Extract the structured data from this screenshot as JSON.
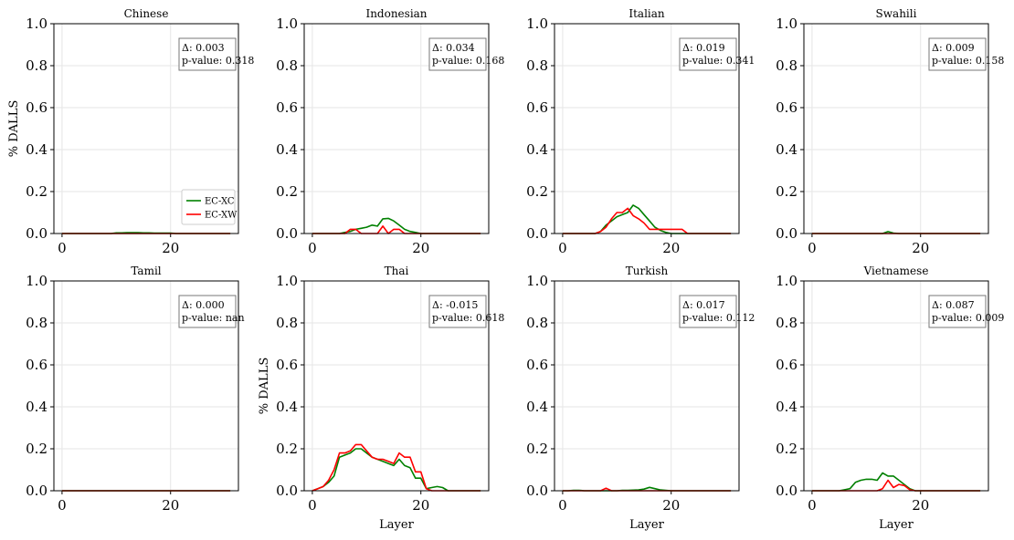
{
  "figure": {
    "line_colors": {
      "EC-XC": "#008000",
      "EC-XW": "#ff0000"
    },
    "legend_in_panel": "Chinese"
  },
  "chart_data": [
    {
      "type": "line",
      "title": "Chinese",
      "xlabel": "",
      "ylabel": "% DALLS",
      "xlim": [
        -1.5,
        32.5
      ],
      "ylim": [
        0,
        1
      ],
      "grid": true,
      "xticks": [
        "0",
        "20"
      ],
      "yticks": [
        "0.0",
        "0.2",
        "0.4",
        "0.6",
        "0.8",
        "1.0"
      ],
      "annotation": {
        "delta": "Δ: 0.003",
        "pvalue": "p-value: 0.318"
      },
      "legend": [
        "EC-XC",
        "EC-XW"
      ],
      "legend_location": "lower right",
      "x": [
        0,
        1,
        2,
        3,
        4,
        5,
        6,
        7,
        8,
        9,
        10,
        11,
        12,
        13,
        14,
        15,
        16,
        17,
        18,
        19,
        20,
        21,
        22,
        23,
        24,
        25,
        26,
        27,
        28,
        29,
        30,
        31
      ],
      "series": [
        {
          "name": "EC-XC",
          "values": [
            0,
            0,
            0,
            0,
            0,
            0,
            0,
            0,
            0,
            0,
            0.003,
            0.003,
            0.004,
            0.004,
            0.004,
            0.003,
            0.003,
            0.002,
            0.002,
            0.002,
            0.002,
            0,
            0,
            0,
            0,
            0,
            0,
            0,
            0,
            0,
            0,
            0
          ]
        },
        {
          "name": "EC-XW",
          "values": [
            0,
            0,
            0,
            0,
            0,
            0,
            0,
            0,
            0,
            0,
            0,
            0,
            0,
            0,
            0,
            0,
            0,
            0,
            0,
            0,
            0,
            0,
            0,
            0,
            0,
            0,
            0,
            0,
            0,
            0,
            0,
            0
          ]
        }
      ]
    },
    {
      "type": "line",
      "title": "Indonesian",
      "xlabel": "",
      "ylabel": "",
      "xlim": [
        -1.5,
        32.5
      ],
      "ylim": [
        0,
        1
      ],
      "grid": true,
      "xticks": [
        "0",
        "20"
      ],
      "yticks": [
        "0.0",
        "0.2",
        "0.4",
        "0.6",
        "0.8",
        "1.0"
      ],
      "annotation": {
        "delta": "Δ: 0.034",
        "pvalue": "p-value: 0.168"
      },
      "x": [
        0,
        1,
        2,
        3,
        4,
        5,
        6,
        7,
        8,
        9,
        10,
        11,
        12,
        13,
        14,
        15,
        16,
        17,
        18,
        19,
        20,
        21,
        22,
        23,
        24,
        25,
        26,
        27,
        28,
        29,
        30,
        31
      ],
      "series": [
        {
          "name": "EC-XC",
          "values": [
            0,
            0,
            0,
            0,
            0,
            0,
            0.005,
            0.01,
            0.02,
            0.025,
            0.03,
            0.04,
            0.035,
            0.07,
            0.072,
            0.06,
            0.04,
            0.02,
            0.01,
            0.005,
            0,
            0,
            0,
            0,
            0,
            0,
            0,
            0,
            0,
            0,
            0,
            0
          ]
        },
        {
          "name": "EC-XW",
          "values": [
            0,
            0,
            0,
            0,
            0,
            0,
            0,
            0.02,
            0.02,
            0,
            0,
            0,
            0,
            0.035,
            0,
            0.02,
            0.02,
            0,
            0,
            0,
            0,
            0,
            0,
            0,
            0,
            0,
            0,
            0,
            0,
            0,
            0,
            0
          ]
        }
      ]
    },
    {
      "type": "line",
      "title": "Italian",
      "xlabel": "",
      "ylabel": "",
      "xlim": [
        -1.5,
        32.5
      ],
      "ylim": [
        0,
        1
      ],
      "grid": true,
      "xticks": [
        "0",
        "20"
      ],
      "yticks": [
        "0.0",
        "0.2",
        "0.4",
        "0.6",
        "0.8",
        "1.0"
      ],
      "annotation": {
        "delta": "Δ: 0.019",
        "pvalue": "p-value: 0.341"
      },
      "x": [
        0,
        1,
        2,
        3,
        4,
        5,
        6,
        7,
        8,
        9,
        10,
        11,
        12,
        13,
        14,
        15,
        16,
        17,
        18,
        19,
        20,
        21,
        22,
        23,
        24,
        25,
        26,
        27,
        28,
        29,
        30,
        31
      ],
      "series": [
        {
          "name": "EC-XC",
          "values": [
            0,
            0,
            0,
            0,
            0,
            0,
            0,
            0.01,
            0.04,
            0.06,
            0.08,
            0.09,
            0.1,
            0.135,
            0.12,
            0.09,
            0.06,
            0.03,
            0.015,
            0.005,
            0,
            0,
            0,
            0,
            0,
            0,
            0,
            0,
            0,
            0,
            0,
            0
          ]
        },
        {
          "name": "EC-XW",
          "values": [
            0,
            0,
            0,
            0,
            0,
            0,
            0,
            0.01,
            0.03,
            0.07,
            0.1,
            0.1,
            0.12,
            0.085,
            0.07,
            0.05,
            0.02,
            0.02,
            0.02,
            0.02,
            0.02,
            0.02,
            0.02,
            0,
            0,
            0,
            0,
            0,
            0,
            0,
            0,
            0
          ]
        }
      ]
    },
    {
      "type": "line",
      "title": "Swahili",
      "xlabel": "",
      "ylabel": "",
      "xlim": [
        -1.5,
        32.5
      ],
      "ylim": [
        0,
        1
      ],
      "grid": true,
      "xticks": [
        "0",
        "20"
      ],
      "yticks": [
        "0.0",
        "0.2",
        "0.4",
        "0.6",
        "0.8",
        "1.0"
      ],
      "annotation": {
        "delta": "Δ: 0.009",
        "pvalue": "p-value: 0.158"
      },
      "x": [
        0,
        1,
        2,
        3,
        4,
        5,
        6,
        7,
        8,
        9,
        10,
        11,
        12,
        13,
        14,
        15,
        16,
        17,
        18,
        19,
        20,
        21,
        22,
        23,
        24,
        25,
        26,
        27,
        28,
        29,
        30,
        31
      ],
      "series": [
        {
          "name": "EC-XC",
          "values": [
            0,
            0,
            0,
            0,
            0,
            0,
            0,
            0,
            0,
            0,
            0,
            0,
            0,
            0,
            0.009,
            0.002,
            0,
            0,
            0,
            0,
            0,
            0,
            0,
            0,
            0,
            0,
            0,
            0,
            0,
            0,
            0,
            0
          ]
        },
        {
          "name": "EC-XW",
          "values": [
            0,
            0,
            0,
            0,
            0,
            0,
            0,
            0,
            0,
            0,
            0,
            0,
            0,
            0,
            0,
            0,
            0,
            0,
            0,
            0,
            0,
            0,
            0,
            0,
            0,
            0,
            0,
            0,
            0,
            0,
            0,
            0
          ]
        }
      ]
    },
    {
      "type": "line",
      "title": "Tamil",
      "xlabel": "",
      "ylabel": "",
      "xlim": [
        -1.5,
        32.5
      ],
      "ylim": [
        0,
        1
      ],
      "grid": true,
      "xticks": [
        "0",
        "20"
      ],
      "yticks": [
        "0.0",
        "0.2",
        "0.4",
        "0.6",
        "0.8",
        "1.0"
      ],
      "annotation": {
        "delta": "Δ: 0.000",
        "pvalue": "p-value: nan"
      },
      "x": [
        0,
        1,
        2,
        3,
        4,
        5,
        6,
        7,
        8,
        9,
        10,
        11,
        12,
        13,
        14,
        15,
        16,
        17,
        18,
        19,
        20,
        21,
        22,
        23,
        24,
        25,
        26,
        27,
        28,
        29,
        30,
        31
      ],
      "series": [
        {
          "name": "EC-XC",
          "values": [
            0,
            0,
            0,
            0,
            0,
            0,
            0,
            0,
            0,
            0,
            0,
            0,
            0,
            0,
            0,
            0,
            0,
            0,
            0,
            0,
            0,
            0,
            0,
            0,
            0,
            0,
            0,
            0,
            0,
            0,
            0,
            0
          ]
        },
        {
          "name": "EC-XW",
          "values": [
            0,
            0,
            0,
            0,
            0,
            0,
            0,
            0,
            0,
            0,
            0,
            0,
            0,
            0,
            0,
            0,
            0,
            0,
            0,
            0,
            0,
            0,
            0,
            0,
            0,
            0,
            0,
            0,
            0,
            0,
            0,
            0
          ]
        }
      ]
    },
    {
      "type": "line",
      "title": "Thai",
      "xlabel": "Layer",
      "ylabel": "% DALLS",
      "xlim": [
        -1.5,
        32.5
      ],
      "ylim": [
        0,
        1
      ],
      "grid": true,
      "xticks": [
        "0",
        "20"
      ],
      "yticks": [
        "0.0",
        "0.2",
        "0.4",
        "0.6",
        "0.8",
        "1.0"
      ],
      "annotation": {
        "delta": "Δ: -0.015",
        "pvalue": "p-value: 0.618"
      },
      "x": [
        0,
        1,
        2,
        3,
        4,
        5,
        6,
        7,
        8,
        9,
        10,
        11,
        12,
        13,
        14,
        15,
        16,
        17,
        18,
        19,
        20,
        21,
        22,
        23,
        24,
        25,
        26,
        27,
        28,
        29,
        30,
        31
      ],
      "series": [
        {
          "name": "EC-XC",
          "values": [
            0,
            0.01,
            0.02,
            0.04,
            0.07,
            0.16,
            0.17,
            0.18,
            0.2,
            0.2,
            0.18,
            0.16,
            0.15,
            0.14,
            0.13,
            0.12,
            0.15,
            0.12,
            0.11,
            0.06,
            0.06,
            0.01,
            0.015,
            0.02,
            0.015,
            0,
            0,
            0,
            0,
            0,
            0,
            0
          ]
        },
        {
          "name": "EC-XW",
          "values": [
            0,
            0.01,
            0.02,
            0.05,
            0.1,
            0.18,
            0.18,
            0.19,
            0.22,
            0.22,
            0.19,
            0.16,
            0.15,
            0.15,
            0.14,
            0.13,
            0.18,
            0.16,
            0.16,
            0.09,
            0.09,
            0.01,
            0,
            0,
            0,
            0,
            0,
            0,
            0,
            0,
            0,
            0
          ]
        }
      ]
    },
    {
      "type": "line",
      "title": "Turkish",
      "xlabel": "Layer",
      "ylabel": "",
      "xlim": [
        -1.5,
        32.5
      ],
      "ylim": [
        0,
        1
      ],
      "grid": true,
      "xticks": [
        "0",
        "20"
      ],
      "yticks": [
        "0.0",
        "0.2",
        "0.4",
        "0.6",
        "0.8",
        "1.0"
      ],
      "annotation": {
        "delta": "Δ: 0.017",
        "pvalue": "p-value: 0.112"
      },
      "x": [
        0,
        1,
        2,
        3,
        4,
        5,
        6,
        7,
        8,
        9,
        10,
        11,
        12,
        13,
        14,
        15,
        16,
        17,
        18,
        19,
        20,
        21,
        22,
        23,
        24,
        25,
        26,
        27,
        28,
        29,
        30,
        31
      ],
      "series": [
        {
          "name": "EC-XC",
          "values": [
            0,
            0,
            0.002,
            0.002,
            0,
            0,
            0,
            0,
            0,
            0,
            0,
            0.002,
            0.002,
            0.003,
            0.004,
            0.008,
            0.016,
            0.01,
            0.004,
            0.002,
            0,
            0,
            0,
            0,
            0,
            0,
            0,
            0,
            0,
            0,
            0,
            0
          ]
        },
        {
          "name": "EC-XW",
          "values": [
            0,
            0,
            0,
            0,
            0,
            0,
            0,
            0,
            0.012,
            0,
            0,
            0,
            0,
            0,
            0,
            0,
            0,
            0,
            0,
            0,
            0,
            0,
            0,
            0,
            0,
            0,
            0,
            0,
            0,
            0,
            0,
            0
          ]
        }
      ]
    },
    {
      "type": "line",
      "title": "Vietnamese",
      "xlabel": "Layer",
      "ylabel": "",
      "xlim": [
        -1.5,
        32.5
      ],
      "ylim": [
        0,
        1
      ],
      "grid": true,
      "xticks": [
        "0",
        "20"
      ],
      "yticks": [
        "0.0",
        "0.2",
        "0.4",
        "0.6",
        "0.8",
        "1.0"
      ],
      "annotation": {
        "delta": "Δ: 0.087",
        "pvalue": "p-value: 0.009"
      },
      "x": [
        0,
        1,
        2,
        3,
        4,
        5,
        6,
        7,
        8,
        9,
        10,
        11,
        12,
        13,
        14,
        15,
        16,
        17,
        18,
        19,
        20,
        21,
        22,
        23,
        24,
        25,
        26,
        27,
        28,
        29,
        30,
        31
      ],
      "series": [
        {
          "name": "EC-XC",
          "values": [
            0,
            0,
            0,
            0,
            0,
            0,
            0.005,
            0.01,
            0.04,
            0.05,
            0.055,
            0.055,
            0.05,
            0.085,
            0.07,
            0.07,
            0.05,
            0.03,
            0.01,
            0,
            0,
            0,
            0,
            0,
            0,
            0,
            0,
            0,
            0,
            0,
            0,
            0
          ]
        },
        {
          "name": "EC-XW",
          "values": [
            0,
            0,
            0,
            0,
            0,
            0,
            0,
            0,
            0,
            0,
            0,
            0,
            0,
            0.01,
            0.05,
            0.015,
            0.03,
            0.025,
            0.005,
            0,
            0,
            0,
            0,
            0,
            0,
            0,
            0,
            0,
            0,
            0,
            0,
            0
          ]
        }
      ]
    }
  ]
}
